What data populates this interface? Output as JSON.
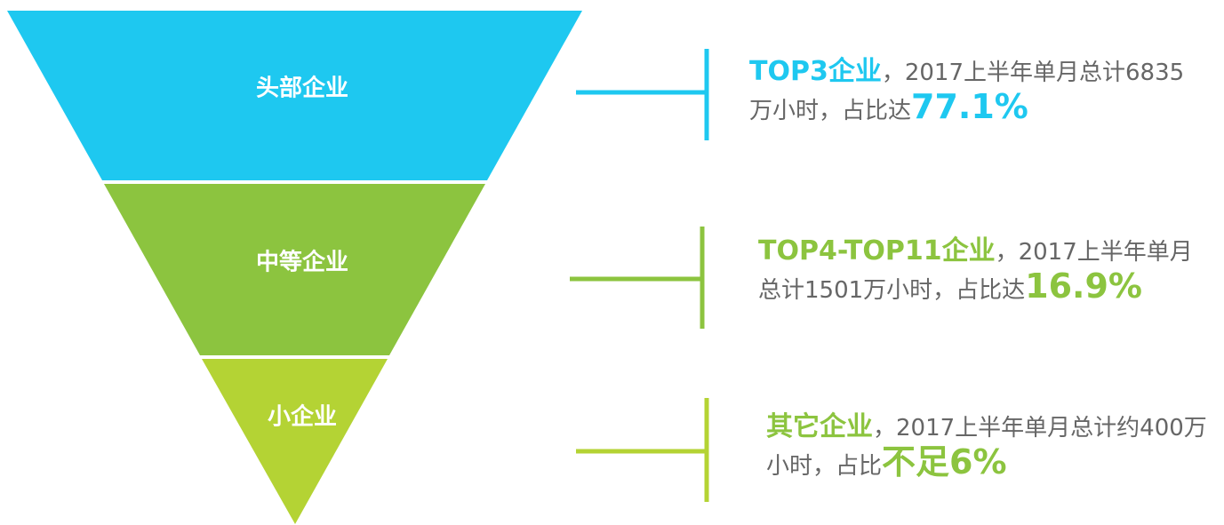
{
  "tiers": [
    {
      "label": "头部企业",
      "highlight": "TOP3企业",
      "text": "，2017上半年单月总计6835万小时，占比达",
      "emphasis": "77.1%"
    },
    {
      "label": "中等企业",
      "highlight": "TOP4-TOP11企业",
      "text": "，2017上半年单月总计1501万小时，占比达",
      "emphasis": "16.9%"
    },
    {
      "label": "小企业",
      "highlight": "其它企业",
      "text": "，2017上半年单月总计约400万小时，占比",
      "emphasis": "不足6%"
    }
  ]
}
